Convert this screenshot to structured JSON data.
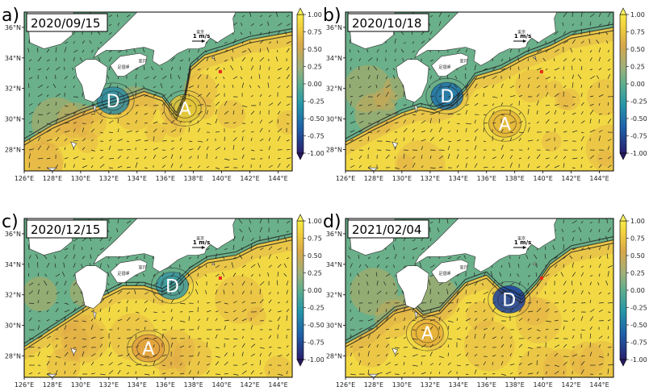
{
  "panels": [
    {
      "label": "a)",
      "date": "2020/09/15",
      "eddies": [
        {
          "name": "D",
          "lon": 132.3,
          "lat": 31.2,
          "color": "#2f8ca0"
        },
        {
          "name": "A",
          "lon": 137.4,
          "lat": 30.7,
          "color": "#e2c43a"
        }
      ]
    },
    {
      "label": "b)",
      "date": "2020/10/18",
      "eddies": [
        {
          "name": "D",
          "lon": 133.2,
          "lat": 31.5,
          "color": "#1f73a8"
        },
        {
          "name": "A",
          "lon": 137.3,
          "lat": 29.7,
          "color": "#e4b43a"
        }
      ]
    },
    {
      "label": "c)",
      "date": "2020/12/15",
      "eddies": [
        {
          "name": "D",
          "lon": 136.5,
          "lat": 32.6,
          "color": "#3a98a0"
        },
        {
          "name": "A",
          "lon": 134.8,
          "lat": 28.5,
          "color": "#e2a03e"
        }
      ]
    },
    {
      "label": "d)",
      "date": "2021/02/04",
      "eddies": [
        {
          "name": "D",
          "lon": 137.6,
          "lat": 31.7,
          "color": "#1a3ea0"
        },
        {
          "name": "A",
          "lon": 131.8,
          "lat": 29.5,
          "color": "#e6b03a"
        }
      ]
    }
  ],
  "map": {
    "lon_ticks": [
      "126°E",
      "128°E",
      "130°E",
      "132°E",
      "134°E",
      "136°E",
      "138°E",
      "140°E",
      "142°E",
      "144°E"
    ],
    "lat_ticks": [
      "28°N",
      "30°N",
      "32°N",
      "34°N",
      "36°N"
    ],
    "scale_label": "1 m/s",
    "station": {
      "lon": 139.9,
      "lat": 33.1
    },
    "city_labels": [
      "東京",
      "室戸",
      "足摺岬"
    ]
  },
  "colorbar": {
    "ticks": [
      "1.00",
      "0.75",
      "0.50",
      "0.25",
      "0.00",
      "-0.25",
      "-0.50",
      "-0.75",
      "-1.00"
    ],
    "min": -1.0,
    "max": 1.0
  },
  "colors": {
    "high": "#f8ea46",
    "mid": "#5fae8c",
    "low": "#252f86",
    "land": "#ffffff",
    "station": "#e8261a"
  }
}
